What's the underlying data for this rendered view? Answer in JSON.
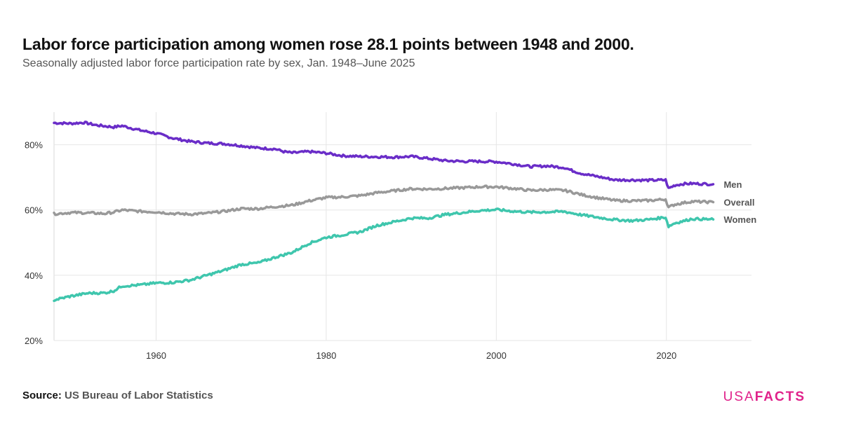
{
  "title": "Labor force participation among women rose 28.1 points between 1948 and 2000.",
  "subtitle": "Seasonally adjusted labor force participation rate by sex, Jan. 1948–June 2025",
  "source": {
    "label": "Source:",
    "value": "US Bureau of Labor Statistics"
  },
  "logo": {
    "usa": "USA",
    "facts": "FACTS",
    "color": "#e0218a"
  },
  "chart_data": {
    "type": "line",
    "xlim": [
      1948,
      2030
    ],
    "ylim": [
      20,
      90
    ],
    "x_ticks": [
      {
        "value": 1960,
        "label": "1960"
      },
      {
        "value": 1980,
        "label": "1980"
      },
      {
        "value": 2000,
        "label": "2000"
      },
      {
        "value": 2020,
        "label": "2020"
      }
    ],
    "y_ticks": [
      {
        "value": 20,
        "label": "20%"
      },
      {
        "value": 40,
        "label": "40%"
      },
      {
        "value": 60,
        "label": "60%"
      },
      {
        "value": 80,
        "label": "80%"
      }
    ],
    "grid": true,
    "series": [
      {
        "name": "Men",
        "color": "#6a2dc8",
        "points": [
          [
            1948.0,
            86.7
          ],
          [
            1950,
            86.5
          ],
          [
            1951.5,
            86.8
          ],
          [
            1953,
            86.0
          ],
          [
            1955,
            85.4
          ],
          [
            1956,
            85.8
          ],
          [
            1958,
            84.5
          ],
          [
            1960,
            83.5
          ],
          [
            1962,
            82.0
          ],
          [
            1964,
            81.0
          ],
          [
            1966,
            80.5
          ],
          [
            1968,
            80.3
          ],
          [
            1970,
            79.7
          ],
          [
            1972,
            79.0
          ],
          [
            1974,
            78.7
          ],
          [
            1975,
            77.9
          ],
          [
            1976,
            77.5
          ],
          [
            1978,
            77.9
          ],
          [
            1980,
            77.4
          ],
          [
            1982,
            76.6
          ],
          [
            1984,
            76.4
          ],
          [
            1986,
            76.3
          ],
          [
            1988,
            76.2
          ],
          [
            1990,
            76.4
          ],
          [
            1992,
            75.8
          ],
          [
            1994,
            75.1
          ],
          [
            1996,
            74.9
          ],
          [
            1998,
            74.9
          ],
          [
            2000,
            74.8
          ],
          [
            2002,
            74.1
          ],
          [
            2004,
            73.3
          ],
          [
            2006,
            73.5
          ],
          [
            2008,
            73.0
          ],
          [
            2009,
            72.0
          ],
          [
            2010,
            71.2
          ],
          [
            2012,
            70.2
          ],
          [
            2014,
            69.2
          ],
          [
            2016,
            69.2
          ],
          [
            2018,
            69.1
          ],
          [
            2019.9,
            69.2
          ],
          [
            2020.25,
            66.6
          ],
          [
            2021,
            67.6
          ],
          [
            2022,
            68.0
          ],
          [
            2023,
            68.1
          ],
          [
            2025.5,
            67.9
          ]
        ]
      },
      {
        "name": "Overall",
        "color": "#999999",
        "points": [
          [
            1948.0,
            58.8
          ],
          [
            1950,
            59.2
          ],
          [
            1952,
            59.1
          ],
          [
            1954,
            58.9
          ],
          [
            1955,
            59.3
          ],
          [
            1956,
            60.0
          ],
          [
            1958,
            59.6
          ],
          [
            1960,
            59.4
          ],
          [
            1962,
            58.9
          ],
          [
            1964,
            58.7
          ],
          [
            1966,
            59.0
          ],
          [
            1968,
            59.6
          ],
          [
            1970,
            60.4
          ],
          [
            1972,
            60.4
          ],
          [
            1974,
            61.0
          ],
          [
            1976,
            61.5
          ],
          [
            1978,
            62.8
          ],
          [
            1980,
            63.8
          ],
          [
            1982,
            64.0
          ],
          [
            1984,
            64.4
          ],
          [
            1986,
            65.3
          ],
          [
            1988,
            65.9
          ],
          [
            1990,
            66.5
          ],
          [
            1992,
            66.4
          ],
          [
            1994,
            66.6
          ],
          [
            1996,
            66.8
          ],
          [
            1998,
            67.1
          ],
          [
            2000,
            67.1
          ],
          [
            2002,
            66.6
          ],
          [
            2004,
            66.0
          ],
          [
            2006,
            66.2
          ],
          [
            2008,
            66.0
          ],
          [
            2009,
            65.4
          ],
          [
            2010,
            64.7
          ],
          [
            2012,
            63.7
          ],
          [
            2014,
            62.9
          ],
          [
            2016,
            62.8
          ],
          [
            2018,
            62.9
          ],
          [
            2019.9,
            63.3
          ],
          [
            2020.25,
            60.8
          ],
          [
            2021,
            61.7
          ],
          [
            2022,
            62.2
          ],
          [
            2023,
            62.6
          ],
          [
            2025.5,
            62.4
          ]
        ]
      },
      {
        "name": "Women",
        "color": "#3fc6ad",
        "points": [
          [
            1948.0,
            32.4
          ],
          [
            1950,
            33.6
          ],
          [
            1952,
            34.5
          ],
          [
            1954,
            34.6
          ],
          [
            1955,
            35.2
          ],
          [
            1956,
            36.7
          ],
          [
            1958,
            37.0
          ],
          [
            1960,
            37.6
          ],
          [
            1962,
            37.8
          ],
          [
            1964,
            38.5
          ],
          [
            1966,
            40.0
          ],
          [
            1968,
            41.5
          ],
          [
            1970,
            43.3
          ],
          [
            1972,
            43.8
          ],
          [
            1974,
            45.5
          ],
          [
            1976,
            47.0
          ],
          [
            1978,
            49.8
          ],
          [
            1980,
            51.6
          ],
          [
            1982,
            52.4
          ],
          [
            1984,
            53.3
          ],
          [
            1986,
            55.3
          ],
          [
            1988,
            56.4
          ],
          [
            1990,
            57.5
          ],
          [
            1992,
            57.5
          ],
          [
            1994,
            58.6
          ],
          [
            1996,
            59.2
          ],
          [
            1998,
            59.8
          ],
          [
            2000,
            60.1
          ],
          [
            2002,
            59.6
          ],
          [
            2004,
            59.3
          ],
          [
            2006,
            59.4
          ],
          [
            2008,
            59.5
          ],
          [
            2009,
            59.0
          ],
          [
            2010,
            58.5
          ],
          [
            2012,
            57.7
          ],
          [
            2014,
            57.0
          ],
          [
            2016,
            56.7
          ],
          [
            2018,
            57.1
          ],
          [
            2019.9,
            57.8
          ],
          [
            2020.25,
            55.0
          ],
          [
            2021,
            56.0
          ],
          [
            2022,
            56.6
          ],
          [
            2023,
            57.3
          ],
          [
            2025.5,
            57.1
          ]
        ]
      }
    ]
  }
}
